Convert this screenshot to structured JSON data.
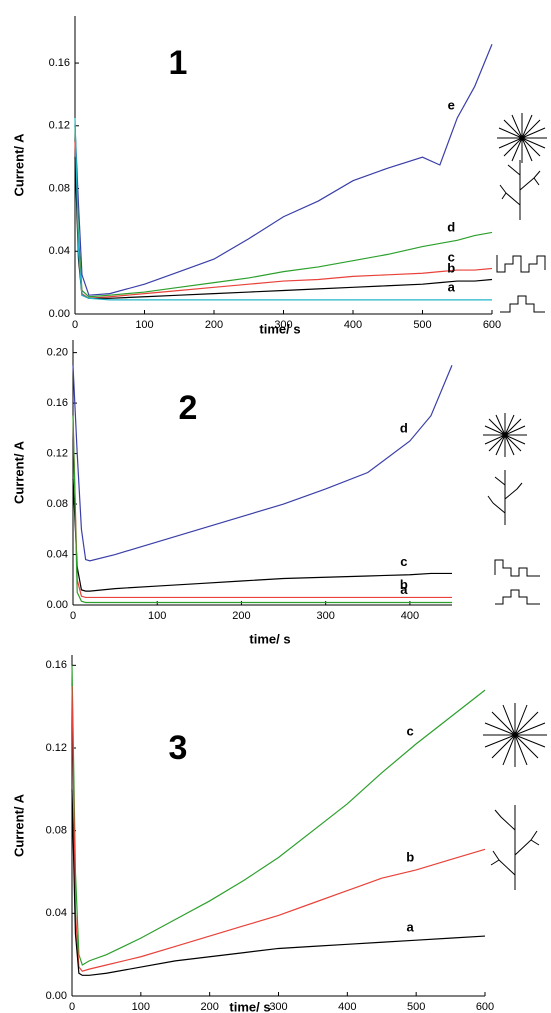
{
  "chart_data": [
    {
      "type": "line",
      "title": "1",
      "xlabel": "time/ s",
      "ylabel": "Current/ A",
      "x": [
        0,
        5,
        10,
        20,
        50,
        100,
        150,
        200,
        250,
        300,
        350,
        400,
        450,
        500,
        525,
        550,
        575,
        600
      ],
      "series": [
        {
          "name": "e",
          "color": "#3a3fa8",
          "values": [
            0.12,
            0.07,
            0.025,
            0.012,
            0.013,
            0.019,
            0.027,
            0.035,
            0.048,
            0.062,
            0.072,
            0.085,
            0.093,
            0.1,
            0.095,
            0.125,
            0.145,
            0.172
          ]
        },
        {
          "name": "d",
          "color": "#2ca02c",
          "values": [
            0.12,
            0.05,
            0.015,
            0.011,
            0.012,
            0.014,
            0.017,
            0.02,
            0.023,
            0.027,
            0.03,
            0.034,
            0.038,
            0.043,
            0.045,
            0.047,
            0.05,
            0.052
          ]
        },
        {
          "name": "c",
          "color": "#e8423a",
          "values": [
            0.11,
            0.04,
            0.013,
            0.01,
            0.011,
            0.013,
            0.015,
            0.017,
            0.019,
            0.021,
            0.022,
            0.024,
            0.025,
            0.026,
            0.027,
            0.028,
            0.028,
            0.029
          ]
        },
        {
          "name": "b",
          "color": "#000000",
          "values": [
            0.1,
            0.035,
            0.012,
            0.01,
            0.01,
            0.011,
            0.012,
            0.013,
            0.014,
            0.015,
            0.016,
            0.017,
            0.018,
            0.019,
            0.02,
            0.021,
            0.021,
            0.022
          ]
        },
        {
          "name": "a",
          "color": "#1fb5c9",
          "values": [
            0.125,
            0.04,
            0.012,
            0.01,
            0.009,
            0.009,
            0.009,
            0.009,
            0.009,
            0.009,
            0.009,
            0.009,
            0.009,
            0.009,
            0.009,
            0.009,
            0.009,
            0.009
          ]
        }
      ],
      "xlim": [
        0,
        600
      ],
      "xticks": [
        0,
        100,
        200,
        300,
        400,
        500,
        600
      ],
      "ylim": [
        0,
        0.19
      ],
      "yticks": [
        {
          "value": 0,
          "label": "0.00"
        },
        0.04,
        0.08,
        0.12,
        0.16
      ]
    },
    {
      "type": "line",
      "title": "2",
      "xlabel": "time/ s",
      "ylabel": "Current/ A",
      "x": [
        0,
        5,
        10,
        15,
        20,
        50,
        100,
        150,
        200,
        250,
        300,
        350,
        400,
        425,
        450
      ],
      "series": [
        {
          "name": "d",
          "color": "#3a3fa8",
          "values": [
            0.19,
            0.12,
            0.06,
            0.036,
            0.035,
            0.04,
            0.05,
            0.06,
            0.07,
            0.08,
            0.092,
            0.105,
            0.13,
            0.15,
            0.19
          ]
        },
        {
          "name": "c",
          "color": "#000000",
          "values": [
            0.1,
            0.03,
            0.012,
            0.011,
            0.011,
            0.013,
            0.015,
            0.017,
            0.019,
            0.021,
            0.022,
            0.023,
            0.024,
            0.025,
            0.025
          ]
        },
        {
          "name": "b",
          "color": "#e8423a",
          "values": [
            0.15,
            0.02,
            0.007,
            0.006,
            0.006,
            0.006,
            0.006,
            0.006,
            0.006,
            0.006,
            0.006,
            0.006,
            0.006,
            0.006,
            0.006
          ]
        },
        {
          "name": "a",
          "color": "#2ca02c",
          "values": [
            0.15,
            0.01,
            0.003,
            0.002,
            0.002,
            0.002,
            0.002,
            0.002,
            0.002,
            0.002,
            0.002,
            0.002,
            0.002,
            0.002,
            0.002
          ]
        }
      ],
      "xlim": [
        0,
        450
      ],
      "xticks": [
        0,
        100,
        200,
        300,
        400
      ],
      "ylim": [
        0,
        0.21
      ],
      "yticks": [
        {
          "value": 0,
          "label": "0.00"
        },
        0.04,
        0.08,
        0.12,
        0.16,
        {
          "value": 0.2,
          "label": "0.20"
        }
      ]
    },
    {
      "type": "line",
      "title": "3",
      "xlabel": "time/ s",
      "ylabel": "Current/ A",
      "x": [
        0,
        5,
        10,
        15,
        25,
        50,
        100,
        150,
        200,
        250,
        300,
        350,
        400,
        450,
        500,
        550,
        600
      ],
      "series": [
        {
          "name": "c",
          "color": "#2ca02c",
          "values": [
            0.16,
            0.06,
            0.02,
            0.015,
            0.017,
            0.02,
            0.028,
            0.037,
            0.046,
            0.056,
            0.067,
            0.08,
            0.093,
            0.108,
            0.122,
            0.135,
            0.148
          ]
        },
        {
          "name": "b",
          "color": "#e8423a",
          "values": [
            0.15,
            0.04,
            0.014,
            0.012,
            0.013,
            0.015,
            0.019,
            0.024,
            0.029,
            0.034,
            0.039,
            0.045,
            0.051,
            0.057,
            0.061,
            0.066,
            0.071
          ]
        },
        {
          "name": "a",
          "color": "#000000",
          "values": [
            0.1,
            0.03,
            0.011,
            0.01,
            0.01,
            0.011,
            0.014,
            0.017,
            0.019,
            0.021,
            0.023,
            0.024,
            0.025,
            0.026,
            0.027,
            0.028,
            0.029
          ]
        }
      ],
      "xlim": [
        0,
        600
      ],
      "xticks": [
        0,
        100,
        200,
        300,
        400,
        500,
        600
      ],
      "ylim": [
        0,
        0.165
      ],
      "yticks": [
        {
          "value": 0,
          "label": "0.00"
        },
        0.04,
        0.08,
        0.12,
        0.16
      ]
    }
  ]
}
